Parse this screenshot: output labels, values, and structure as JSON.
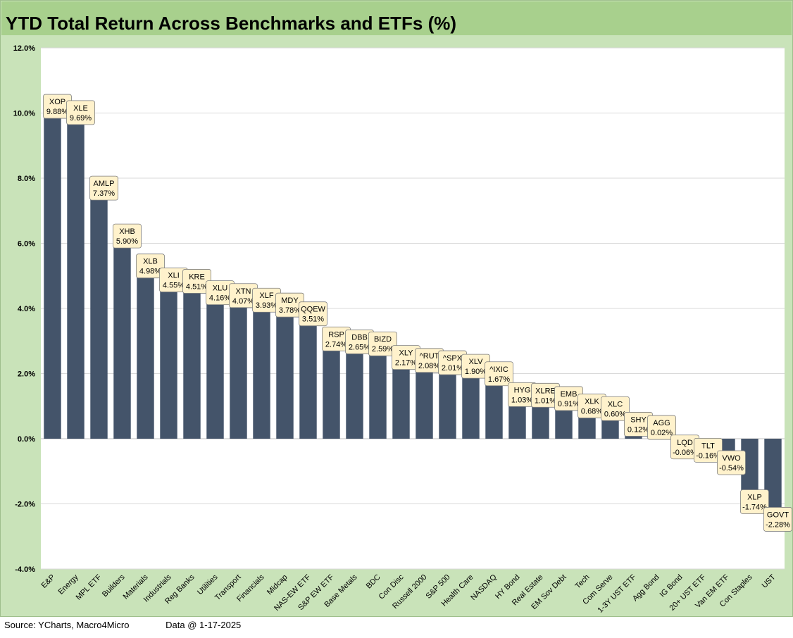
{
  "title": "YTD Total Return Across Benchmarks and ETFs (%)",
  "footer": {
    "source": "Source: YCharts, Macro4Micro",
    "data_date": "Data @ 1-17-2025"
  },
  "chart_data": {
    "type": "bar",
    "title": "YTD Total Return Across Benchmarks and ETFs (%)",
    "xlabel": "",
    "ylabel": "",
    "ylim": [
      -4.0,
      12.0
    ],
    "ytick_step": 2.0,
    "ytick_labels": [
      "-4.0%",
      "-2.0%",
      "0.0%",
      "2.0%",
      "4.0%",
      "6.0%",
      "8.0%",
      "10.0%",
      "12.0%"
    ],
    "grid": "horizontal",
    "legend": "none",
    "bar_color": "#44546a",
    "label_box_color": "#fff2cc",
    "categories": [
      "E&P",
      "Energy",
      "MPL ETF",
      "Builders",
      "Materials",
      "Industrials",
      "Reg Banks",
      "Utilities",
      "Transport",
      "Financials",
      "Midcap",
      "NAS-EW ETF",
      "S&P EW ETF",
      "Base Metals",
      "BDC",
      "Con Disc",
      "Russell 2000",
      "S&P 500",
      "Health Care",
      "NASDAQ",
      "HY Bond",
      "Real Estate",
      "EM Sov Debt",
      "Tech",
      "Com Serve",
      "1-3Y UST ETF",
      "Agg Bond",
      "IG Bond",
      "20+ UST ETF",
      "Van EM ETF",
      "Con Staples",
      "UST"
    ],
    "tickers": [
      "XOP",
      "XLE",
      "AMLP",
      "XHB",
      "XLB",
      "XLI",
      "KRE",
      "XLU",
      "XTN",
      "XLF",
      "MDY",
      "QQEW",
      "RSP",
      "DBB",
      "BIZD",
      "XLY",
      "^RUT",
      "^SPX",
      "XLV",
      "^IXIC",
      "HYG",
      "XLRE",
      "EMB",
      "XLK",
      "XLC",
      "SHY",
      "AGG",
      "LQD",
      "TLT",
      "VWO",
      "XLP",
      "GOVT"
    ],
    "values": [
      9.88,
      9.69,
      7.37,
      5.9,
      4.98,
      4.55,
      4.51,
      4.16,
      4.07,
      3.93,
      3.78,
      3.51,
      2.74,
      2.65,
      2.59,
      2.17,
      2.08,
      2.01,
      1.9,
      1.67,
      1.03,
      1.01,
      0.91,
      0.68,
      0.6,
      0.12,
      0.02,
      -0.06,
      -0.16,
      -0.54,
      -1.74,
      -2.28
    ],
    "value_labels": [
      "9.88%",
      "9.69%",
      "7.37%",
      "5.90%",
      "4.98%",
      "4.55%",
      "4.51%",
      "4.16%",
      "4.07%",
      "3.93%",
      "3.78%",
      "3.51%",
      "2.74%",
      "2.65%",
      "2.59%",
      "2.17%",
      "2.08%",
      "2.01%",
      "1.90%",
      "1.67%",
      "1.03%",
      "1.01%",
      "0.91%",
      "0.68%",
      "0.60%",
      "0.12%",
      "0.02%",
      "-0.06%",
      "-0.16%",
      "-0.54%",
      "-1.74%",
      "-2.28%"
    ]
  }
}
